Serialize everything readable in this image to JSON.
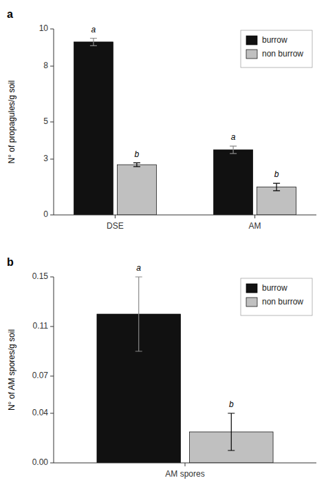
{
  "chart_data": [
    {
      "type": "bar",
      "title": "a",
      "categories": [
        "DSE",
        "AM"
      ],
      "series": [
        {
          "name": "burrow",
          "color": "#111111",
          "values": [
            9.3,
            3.5
          ],
          "errors": [
            0.2,
            0.2
          ],
          "annotations": [
            "a",
            "a"
          ]
        },
        {
          "name": "non burrow",
          "color": "#c0c0c0",
          "values": [
            2.7,
            1.5
          ],
          "errors": [
            0.1,
            0.2
          ],
          "annotations": [
            "b",
            "b"
          ]
        }
      ],
      "y_label": "N° of propagules/g soil",
      "ylim": [
        0,
        10
      ],
      "yticks": [
        0,
        3,
        5,
        8,
        10
      ],
      "grid": false,
      "legend": "upper right"
    },
    {
      "type": "bar",
      "title": "b",
      "categories": [
        "AM spores"
      ],
      "series": [
        {
          "name": "burrow",
          "color": "#111111",
          "values": [
            0.12
          ],
          "errors": [
            0.03
          ],
          "annotations": [
            "a"
          ]
        },
        {
          "name": "non burrow",
          "color": "#c0c0c0",
          "values": [
            0.025
          ],
          "errors": [
            0.015
          ],
          "annotations": [
            "b"
          ]
        }
      ],
      "y_label": "N° of AM spores/g soil",
      "ylim": [
        0,
        0.15
      ],
      "yticks": [
        {
          "value": 0,
          "label": "0.00"
        },
        0.04,
        0.07,
        0.11,
        0.15
      ],
      "grid": false,
      "legend": "upper right"
    }
  ]
}
